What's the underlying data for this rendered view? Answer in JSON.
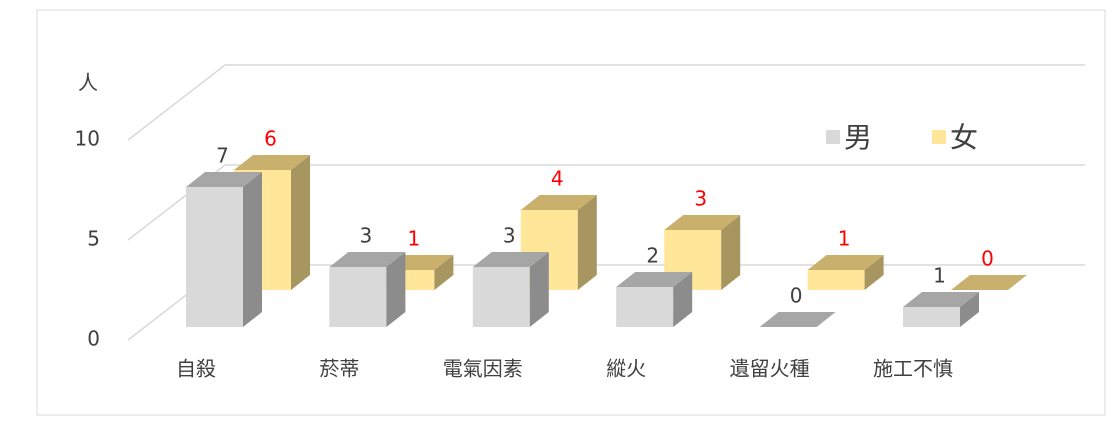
{
  "chart_data": {
    "type": "bar3d",
    "y_label": "人",
    "categories": [
      "自殺",
      "菸蒂",
      "電氣因素",
      "縱火",
      "遺留火種",
      "施工不慎"
    ],
    "series": [
      {
        "name": "男",
        "color": "#d9d9d9",
        "side_color": "#8c8c8c",
        "top_color": "#a6a6a6",
        "label_color": "#404040",
        "values": [
          7,
          3,
          3,
          2,
          0,
          1
        ]
      },
      {
        "name": "女",
        "color": "#ffe699",
        "side_color": "#a89660",
        "top_color": "#c9b06c",
        "label_color": "#ff0000",
        "values": [
          6,
          1,
          4,
          3,
          1,
          0
        ]
      }
    ],
    "ylim": [
      0,
      10
    ],
    "yticks": [
      0,
      5,
      10
    ],
    "grid": true,
    "legend": "top-right"
  }
}
